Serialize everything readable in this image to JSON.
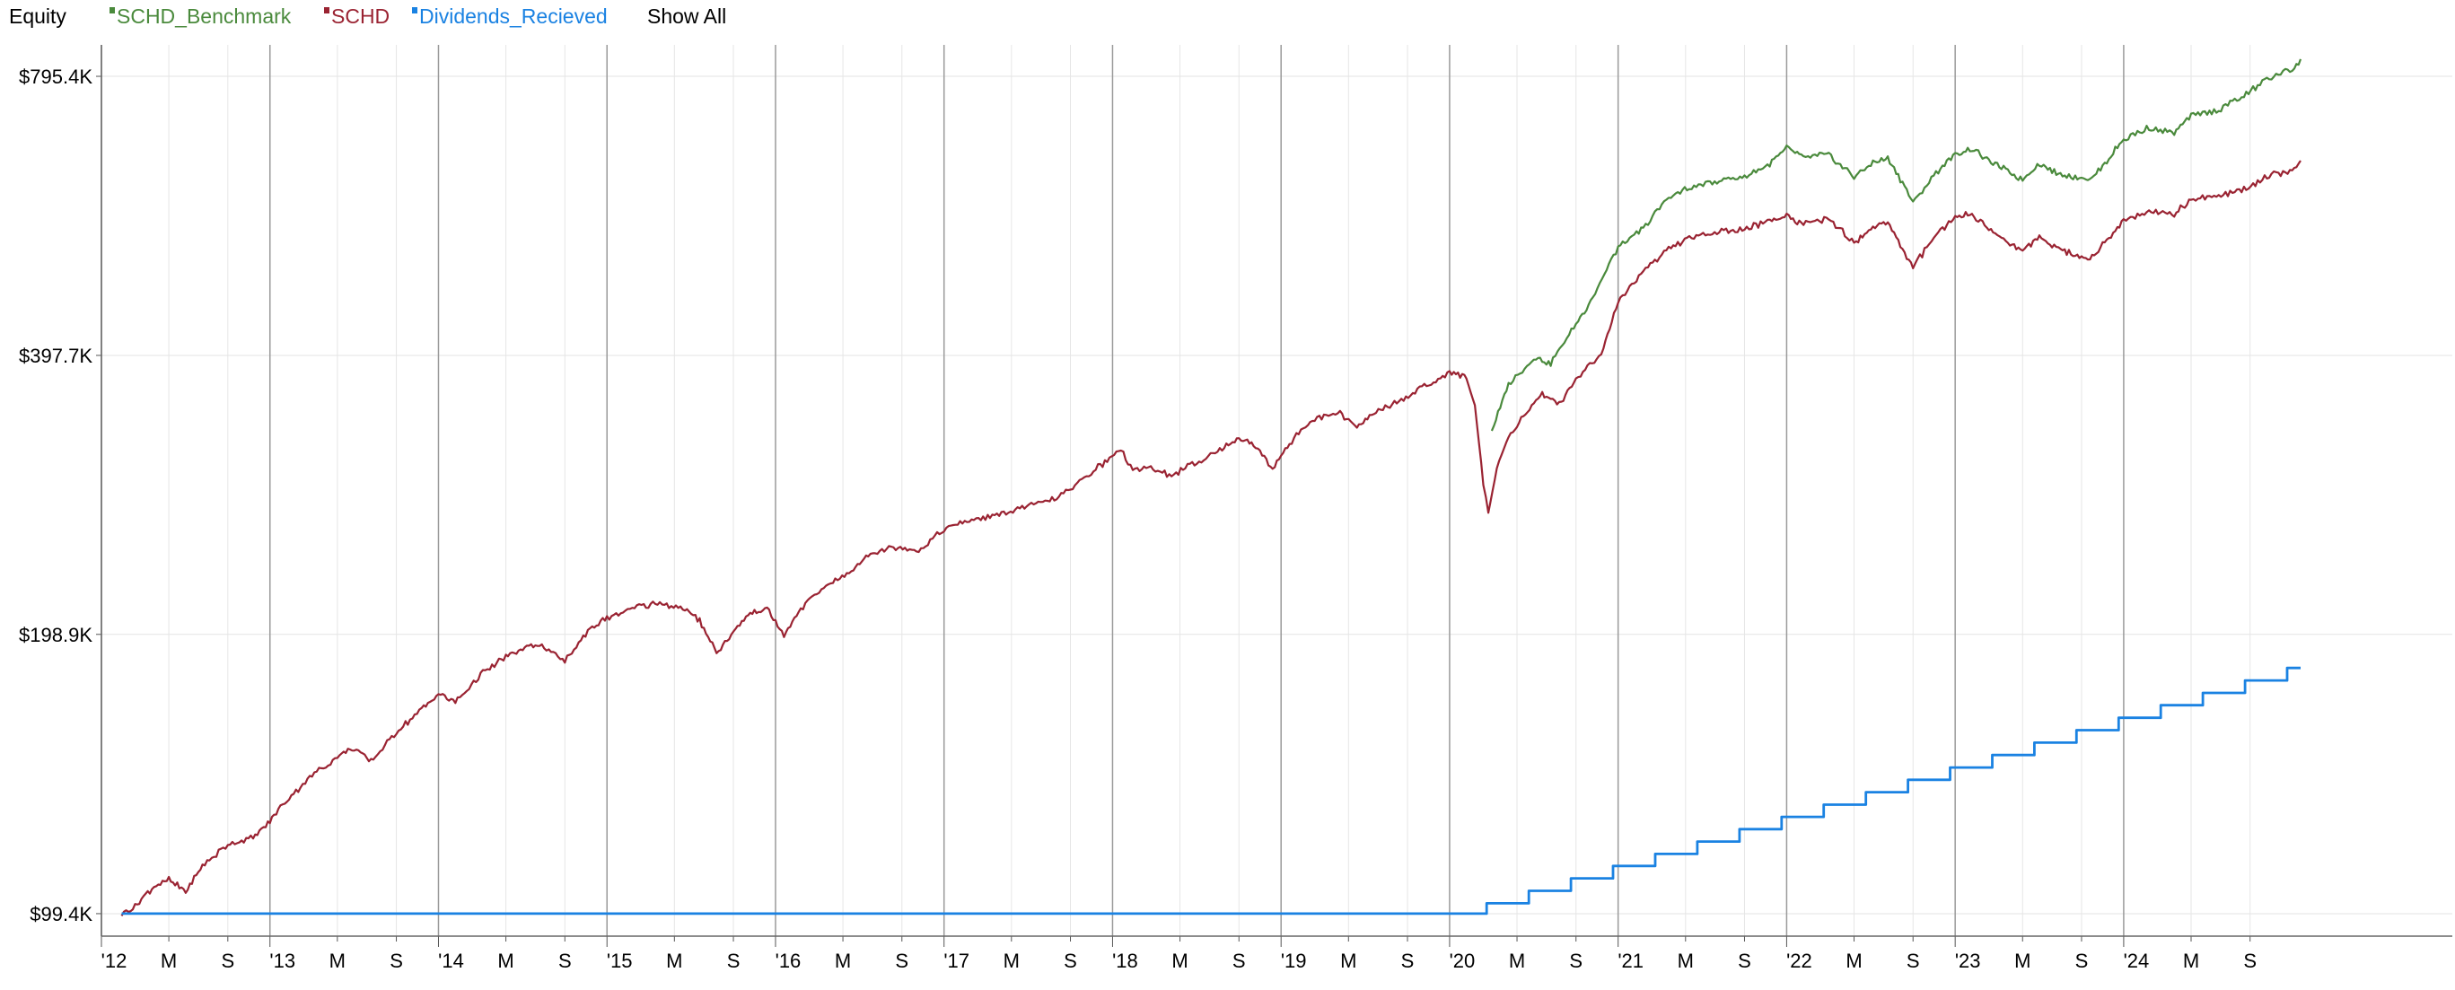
{
  "legend": {
    "title": "Equity",
    "show_all_label": "Show All",
    "items": [
      {
        "label": "SCHD_Benchmark",
        "color": "#4a8a3c"
      },
      {
        "label": "SCHD",
        "color": "#9a2332"
      },
      {
        "label": "Dividends_Recieved",
        "color": "#1a82e2"
      }
    ]
  },
  "chart_data": {
    "type": "line",
    "y_scale": "log",
    "ylim": [
      94000,
      860000
    ],
    "x_range": [
      2012.0,
      2025.95
    ],
    "grid": true,
    "legend_position": "top-left",
    "y_ticks": [
      {
        "value": 99400,
        "label": "$99.4K"
      },
      {
        "value": 198900,
        "label": "$198.9K"
      },
      {
        "value": 397700,
        "label": "$397.7K"
      },
      {
        "value": 795400,
        "label": "$795.4K"
      }
    ],
    "x_ticks": [
      {
        "x": 2012.0,
        "label": "'12",
        "major": true
      },
      {
        "x": 2012.4,
        "label": "M",
        "major": false
      },
      {
        "x": 2012.75,
        "label": "S",
        "major": false
      },
      {
        "x": 2013.0,
        "label": "'13",
        "major": true
      },
      {
        "x": 2013.4,
        "label": "M",
        "major": false
      },
      {
        "x": 2013.75,
        "label": "S",
        "major": false
      },
      {
        "x": 2014.0,
        "label": "'14",
        "major": true
      },
      {
        "x": 2014.4,
        "label": "M",
        "major": false
      },
      {
        "x": 2014.75,
        "label": "S",
        "major": false
      },
      {
        "x": 2015.0,
        "label": "'15",
        "major": true
      },
      {
        "x": 2015.4,
        "label": "M",
        "major": false
      },
      {
        "x": 2015.75,
        "label": "S",
        "major": false
      },
      {
        "x": 2016.0,
        "label": "'16",
        "major": true
      },
      {
        "x": 2016.4,
        "label": "M",
        "major": false
      },
      {
        "x": 2016.75,
        "label": "S",
        "major": false
      },
      {
        "x": 2017.0,
        "label": "'17",
        "major": true
      },
      {
        "x": 2017.4,
        "label": "M",
        "major": false
      },
      {
        "x": 2017.75,
        "label": "S",
        "major": false
      },
      {
        "x": 2018.0,
        "label": "'18",
        "major": true
      },
      {
        "x": 2018.4,
        "label": "M",
        "major": false
      },
      {
        "x": 2018.75,
        "label": "S",
        "major": false
      },
      {
        "x": 2019.0,
        "label": "'19",
        "major": true
      },
      {
        "x": 2019.4,
        "label": "M",
        "major": false
      },
      {
        "x": 2019.75,
        "label": "S",
        "major": false
      },
      {
        "x": 2020.0,
        "label": "'20",
        "major": true
      },
      {
        "x": 2020.4,
        "label": "M",
        "major": false
      },
      {
        "x": 2020.75,
        "label": "S",
        "major": false
      },
      {
        "x": 2021.0,
        "label": "'21",
        "major": true
      },
      {
        "x": 2021.4,
        "label": "M",
        "major": false
      },
      {
        "x": 2021.75,
        "label": "S",
        "major": false
      },
      {
        "x": 2022.0,
        "label": "'22",
        "major": true
      },
      {
        "x": 2022.4,
        "label": "M",
        "major": false
      },
      {
        "x": 2022.75,
        "label": "S",
        "major": false
      },
      {
        "x": 2023.0,
        "label": "'23",
        "major": true
      },
      {
        "x": 2023.4,
        "label": "M",
        "major": false
      },
      {
        "x": 2023.75,
        "label": "S",
        "major": false
      },
      {
        "x": 2024.0,
        "label": "'24",
        "major": true
      },
      {
        "x": 2024.4,
        "label": "M",
        "major": false
      },
      {
        "x": 2024.75,
        "label": "S",
        "major": false
      }
    ],
    "series": [
      {
        "name": "SCHD_Benchmark",
        "color": "#4a8a3c",
        "points": [
          [
            2020.25,
            330000
          ],
          [
            2020.35,
            370000
          ],
          [
            2020.5,
            395000
          ],
          [
            2020.6,
            390000
          ],
          [
            2020.75,
            430000
          ],
          [
            2020.85,
            460000
          ],
          [
            2021.0,
            520000
          ],
          [
            2021.15,
            545000
          ],
          [
            2021.3,
            590000
          ],
          [
            2021.45,
            605000
          ],
          [
            2021.6,
            615000
          ],
          [
            2021.75,
            620000
          ],
          [
            2021.9,
            640000
          ],
          [
            2022.0,
            665000
          ],
          [
            2022.1,
            650000
          ],
          [
            2022.25,
            655000
          ],
          [
            2022.4,
            620000
          ],
          [
            2022.5,
            640000
          ],
          [
            2022.6,
            650000
          ],
          [
            2022.7,
            605000
          ],
          [
            2022.75,
            580000
          ],
          [
            2022.9,
            630000
          ],
          [
            2023.0,
            655000
          ],
          [
            2023.1,
            665000
          ],
          [
            2023.2,
            645000
          ],
          [
            2023.3,
            630000
          ],
          [
            2023.4,
            615000
          ],
          [
            2023.5,
            640000
          ],
          [
            2023.6,
            625000
          ],
          [
            2023.7,
            620000
          ],
          [
            2023.8,
            615000
          ],
          [
            2023.9,
            645000
          ],
          [
            2024.0,
            680000
          ],
          [
            2024.15,
            700000
          ],
          [
            2024.3,
            690000
          ],
          [
            2024.4,
            720000
          ],
          [
            2024.55,
            730000
          ],
          [
            2024.7,
            755000
          ],
          [
            2024.85,
            790000
          ],
          [
            2025.0,
            810000
          ],
          [
            2025.05,
            830000
          ]
        ]
      },
      {
        "name": "SCHD",
        "color": "#9a2332",
        "points": [
          [
            2012.12,
            99400
          ],
          [
            2012.2,
            101000
          ],
          [
            2012.3,
            106000
          ],
          [
            2012.4,
            108000
          ],
          [
            2012.5,
            105000
          ],
          [
            2012.6,
            112000
          ],
          [
            2012.75,
            118000
          ],
          [
            2012.9,
            120000
          ],
          [
            2013.0,
            125000
          ],
          [
            2013.1,
            132000
          ],
          [
            2013.25,
            140000
          ],
          [
            2013.4,
            147000
          ],
          [
            2013.5,
            150000
          ],
          [
            2013.6,
            145000
          ],
          [
            2013.75,
            156000
          ],
          [
            2013.9,
            165000
          ],
          [
            2014.0,
            172000
          ],
          [
            2014.1,
            168000
          ],
          [
            2014.25,
            180000
          ],
          [
            2014.4,
            188000
          ],
          [
            2014.5,
            192000
          ],
          [
            2014.6,
            194000
          ],
          [
            2014.75,
            186000
          ],
          [
            2014.9,
            202000
          ],
          [
            2015.0,
            207000
          ],
          [
            2015.15,
            212000
          ],
          [
            2015.3,
            215000
          ],
          [
            2015.45,
            212000
          ],
          [
            2015.55,
            206000
          ],
          [
            2015.65,
            190000
          ],
          [
            2015.75,
            200000
          ],
          [
            2015.85,
            210000
          ],
          [
            2015.95,
            212000
          ],
          [
            2016.05,
            198000
          ],
          [
            2016.15,
            212000
          ],
          [
            2016.3,
            225000
          ],
          [
            2016.45,
            232000
          ],
          [
            2016.55,
            243000
          ],
          [
            2016.7,
            247000
          ],
          [
            2016.85,
            245000
          ],
          [
            2017.0,
            258000
          ],
          [
            2017.15,
            264000
          ],
          [
            2017.3,
            267000
          ],
          [
            2017.45,
            272000
          ],
          [
            2017.6,
            276000
          ],
          [
            2017.75,
            285000
          ],
          [
            2017.9,
            300000
          ],
          [
            2018.05,
            315000
          ],
          [
            2018.12,
            298000
          ],
          [
            2018.2,
            302000
          ],
          [
            2018.35,
            295000
          ],
          [
            2018.5,
            305000
          ],
          [
            2018.65,
            315000
          ],
          [
            2018.75,
            325000
          ],
          [
            2018.85,
            318000
          ],
          [
            2018.95,
            300000
          ],
          [
            2019.05,
            320000
          ],
          [
            2019.2,
            340000
          ],
          [
            2019.35,
            345000
          ],
          [
            2019.45,
            332000
          ],
          [
            2019.55,
            345000
          ],
          [
            2019.7,
            355000
          ],
          [
            2019.85,
            368000
          ],
          [
            2020.0,
            380000
          ],
          [
            2020.1,
            378000
          ],
          [
            2020.15,
            350000
          ],
          [
            2020.2,
            290000
          ],
          [
            2020.23,
            270000
          ],
          [
            2020.28,
            300000
          ],
          [
            2020.35,
            325000
          ],
          [
            2020.45,
            345000
          ],
          [
            2020.55,
            360000
          ],
          [
            2020.65,
            352000
          ],
          [
            2020.75,
            375000
          ],
          [
            2020.9,
            400000
          ],
          [
            2021.0,
            455000
          ],
          [
            2021.15,
            490000
          ],
          [
            2021.3,
            520000
          ],
          [
            2021.45,
            535000
          ],
          [
            2021.6,
            540000
          ],
          [
            2021.75,
            545000
          ],
          [
            2021.9,
            555000
          ],
          [
            2022.0,
            565000
          ],
          [
            2022.1,
            550000
          ],
          [
            2022.25,
            560000
          ],
          [
            2022.4,
            525000
          ],
          [
            2022.5,
            545000
          ],
          [
            2022.6,
            555000
          ],
          [
            2022.7,
            512000
          ],
          [
            2022.75,
            495000
          ],
          [
            2022.9,
            540000
          ],
          [
            2023.0,
            560000
          ],
          [
            2023.1,
            565000
          ],
          [
            2023.2,
            545000
          ],
          [
            2023.3,
            528000
          ],
          [
            2023.4,
            515000
          ],
          [
            2023.5,
            535000
          ],
          [
            2023.6,
            520000
          ],
          [
            2023.7,
            510000
          ],
          [
            2023.8,
            505000
          ],
          [
            2023.9,
            530000
          ],
          [
            2024.0,
            555000
          ],
          [
            2024.15,
            570000
          ],
          [
            2024.3,
            565000
          ],
          [
            2024.4,
            585000
          ],
          [
            2024.55,
            590000
          ],
          [
            2024.7,
            600000
          ],
          [
            2024.85,
            620000
          ],
          [
            2025.0,
            630000
          ],
          [
            2025.05,
            645000
          ]
        ]
      },
      {
        "name": "Dividends_Recieved",
        "color": "#1a82e2",
        "step": true,
        "points": [
          [
            2012.12,
            99400
          ],
          [
            2020.22,
            99400
          ],
          [
            2020.22,
            102000
          ],
          [
            2020.47,
            102000
          ],
          [
            2020.47,
            105200
          ],
          [
            2020.72,
            105200
          ],
          [
            2020.72,
            108500
          ],
          [
            2020.97,
            108500
          ],
          [
            2020.97,
            111900
          ],
          [
            2021.22,
            111900
          ],
          [
            2021.22,
            115300
          ],
          [
            2021.47,
            115300
          ],
          [
            2021.47,
            118900
          ],
          [
            2021.72,
            118900
          ],
          [
            2021.72,
            122600
          ],
          [
            2021.97,
            122600
          ],
          [
            2021.97,
            126400
          ],
          [
            2022.22,
            126400
          ],
          [
            2022.22,
            130300
          ],
          [
            2022.47,
            130300
          ],
          [
            2022.47,
            134400
          ],
          [
            2022.72,
            134400
          ],
          [
            2022.72,
            138600
          ],
          [
            2022.97,
            138600
          ],
          [
            2022.97,
            142900
          ],
          [
            2023.22,
            142900
          ],
          [
            2023.22,
            147400
          ],
          [
            2023.47,
            147400
          ],
          [
            2023.47,
            152000
          ],
          [
            2023.72,
            152000
          ],
          [
            2023.72,
            156800
          ],
          [
            2023.97,
            156800
          ],
          [
            2023.97,
            161700
          ],
          [
            2024.22,
            161700
          ],
          [
            2024.22,
            166800
          ],
          [
            2024.47,
            166800
          ],
          [
            2024.47,
            172000
          ],
          [
            2024.72,
            172000
          ],
          [
            2024.72,
            177400
          ],
          [
            2024.97,
            177400
          ],
          [
            2024.97,
            183000
          ],
          [
            2025.05,
            183000
          ]
        ]
      }
    ]
  }
}
